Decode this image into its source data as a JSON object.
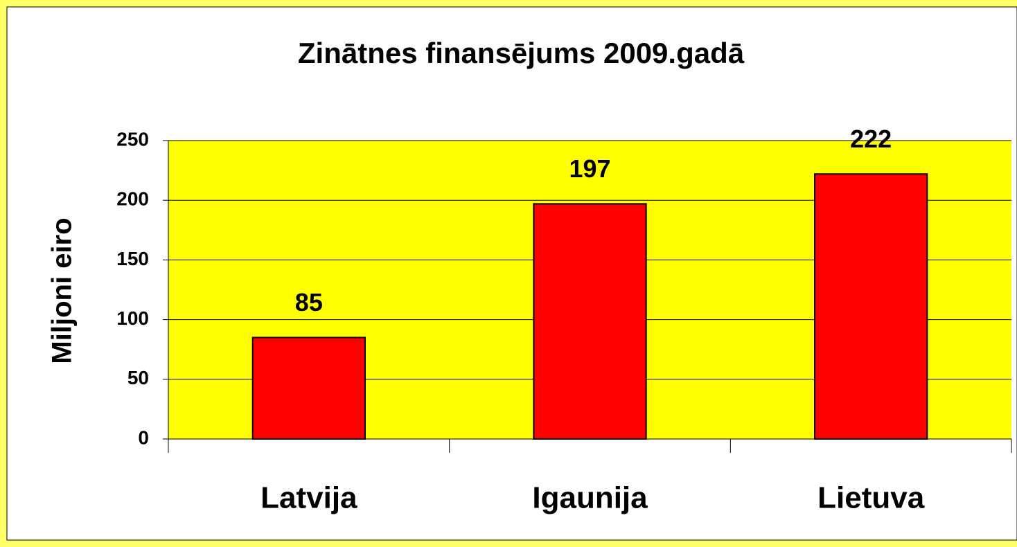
{
  "chart_data": {
    "type": "bar",
    "title": "Zinātnes finansējums 2009.gadā",
    "y_label": "Miljoni eiro",
    "categories": [
      "Latvija",
      "Igaunija",
      "Lietuva"
    ],
    "values": [
      85,
      197,
      222
    ],
    "color": "#ff0000",
    "ylim": [
      0,
      250
    ],
    "yticks": [
      0,
      50,
      100,
      150,
      200,
      250
    ],
    "grid": true,
    "plot_background": "#ffff00"
  }
}
